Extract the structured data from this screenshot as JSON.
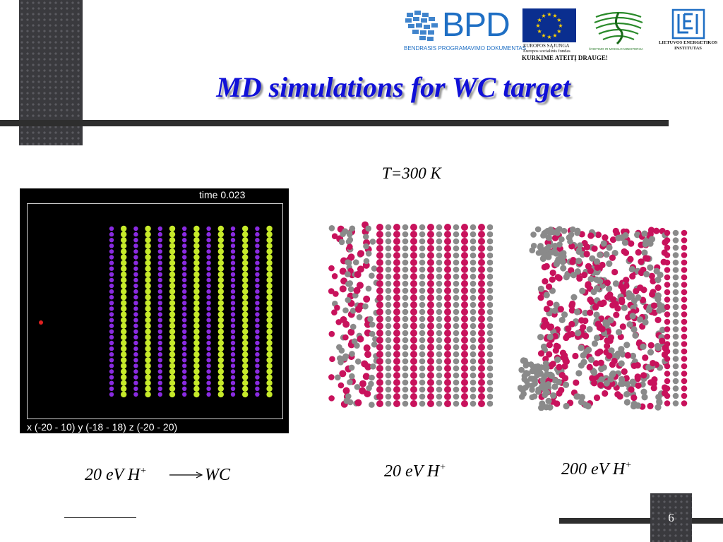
{
  "slide": {
    "title": "MD simulations for WC target",
    "temperature_label": "T=300 K",
    "page_number": "6"
  },
  "logos": {
    "bpd_word": "BPD",
    "bpd_subtitle": "BENDRASIS PROGRAMAVIMO DOKUMENTAS",
    "eu_line1": "EUROPOS SĄJUNGA",
    "eu_line2": "Europos socialinis fondas",
    "eu_line3": "KURKIME ATEITĮ DRAUGE!",
    "ministry_text": "ŠVIETIMO IR MOKSLO MINISTERIJA",
    "lei_line1": "LIETUVOS ENERGETIKOS",
    "lei_line2": "INSTITUTAS"
  },
  "simulation": {
    "time_label": "time 0.023",
    "range_label": "x (-20 - 10) y (-18 - 18) z (-20 - 20)",
    "colors": {
      "species_a": "#8a2be2",
      "species_b": "#c6ea2a",
      "projectile": "#e02020",
      "w_atom": "#c8125c",
      "c_atom": "#8a8a8a"
    }
  },
  "captions": {
    "c1_text": "20 eV H",
    "c1_sup": "+",
    "c1_target": "WC",
    "c2_text": "20 eV H",
    "c2_sup": "+",
    "c3_text": "200 eV H",
    "c3_sup": "+"
  }
}
